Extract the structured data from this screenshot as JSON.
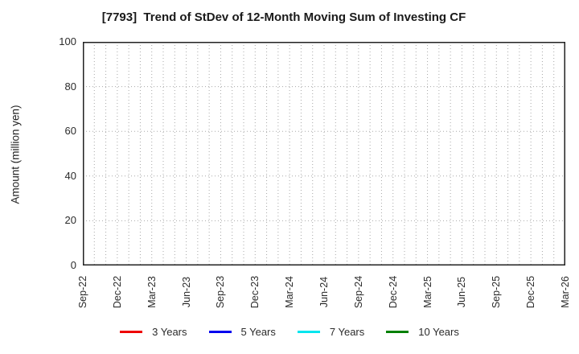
{
  "chart_data": {
    "type": "line",
    "title": "[7793]  Trend of StDev of 12-Month Moving Sum of Investing CF",
    "xlabel": "",
    "ylabel": "Amount (million yen)",
    "ylim": [
      0,
      100
    ],
    "yticks": [
      0,
      20,
      40,
      60,
      80,
      100
    ],
    "x_tick_labels": [
      "Sep-22",
      "Dec-22",
      "Mar-23",
      "Jun-23",
      "Sep-23",
      "Dec-23",
      "Mar-24",
      "Jun-24",
      "Sep-24",
      "Dec-24",
      "Mar-25",
      "Jun-25",
      "Sep-25",
      "Dec-25",
      "Mar-26"
    ],
    "x_total_months": 42,
    "x_label_step_months": 3,
    "grid": {
      "visible": true,
      "style": "dotted",
      "color": "#a8a8a8"
    },
    "axis_color": "#222222",
    "legend_position": "bottom",
    "series": [
      {
        "name": "3 Years",
        "color": "#ee0000",
        "values": []
      },
      {
        "name": "5 Years",
        "color": "#0000ee",
        "values": []
      },
      {
        "name": "7 Years",
        "color": "#00e5ee",
        "values": []
      },
      {
        "name": "10 Years",
        "color": "#008000",
        "values": []
      }
    ]
  }
}
